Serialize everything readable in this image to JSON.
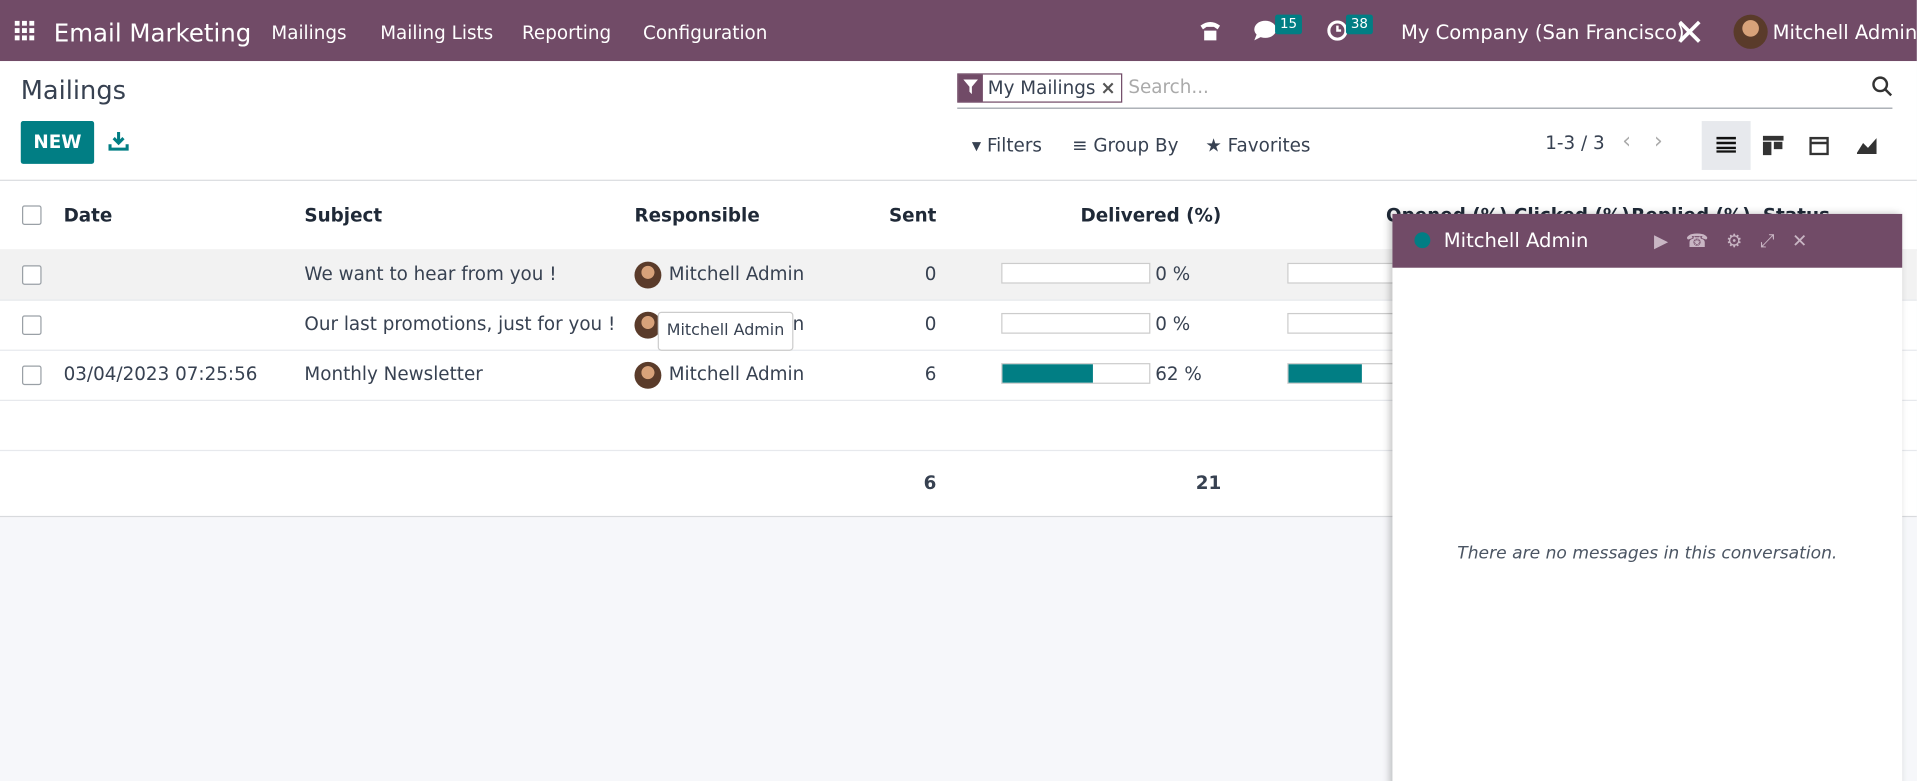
{
  "navbar": {
    "app_name": "Email Marketing",
    "menu": [
      "Mailings",
      "Mailing Lists",
      "Reporting",
      "Configuration"
    ],
    "messages_badge": "15",
    "activities_badge": "38",
    "company": "My Company (San Francisco)",
    "user": "Mitchell Admin"
  },
  "control_panel": {
    "title": "Mailings",
    "new_button": "NEW",
    "facet": "My Mailings",
    "search_placeholder": "Search...",
    "filters": "Filters",
    "group_by": "Group By",
    "favorites": "Favorites",
    "pager": "1-3 / 3"
  },
  "table": {
    "headers": [
      "Date",
      "Subject",
      "Responsible",
      "Sent",
      "Delivered (%)",
      "Opened (%)",
      "Clicked (%)",
      "Replied (%)",
      "Status"
    ],
    "rows": [
      {
        "date": "",
        "subject": "We want to hear from you !",
        "responsible": "Mitchell Admin",
        "sent": "0",
        "delivered": 0,
        "delivered_label": "0 %",
        "opened": 0
      },
      {
        "date": "",
        "subject": "Our last promotions, just for you !",
        "responsible": "Mitchell Admin",
        "sent": "0",
        "delivered": 0,
        "delivered_label": "0 %",
        "opened": 0
      },
      {
        "date": "03/04/2023 07:25:56",
        "subject": "Monthly Newsletter",
        "responsible": "Mitchell Admin",
        "sent": "6",
        "delivered": 62,
        "delivered_label": "62 %",
        "opened": 50
      }
    ],
    "totals": {
      "sent": "6",
      "delivered": "21"
    }
  },
  "tooltip": "Mitchell Admin",
  "chat": {
    "name": "Mitchell Admin",
    "empty_message": "There are no messages in this conversation."
  }
}
